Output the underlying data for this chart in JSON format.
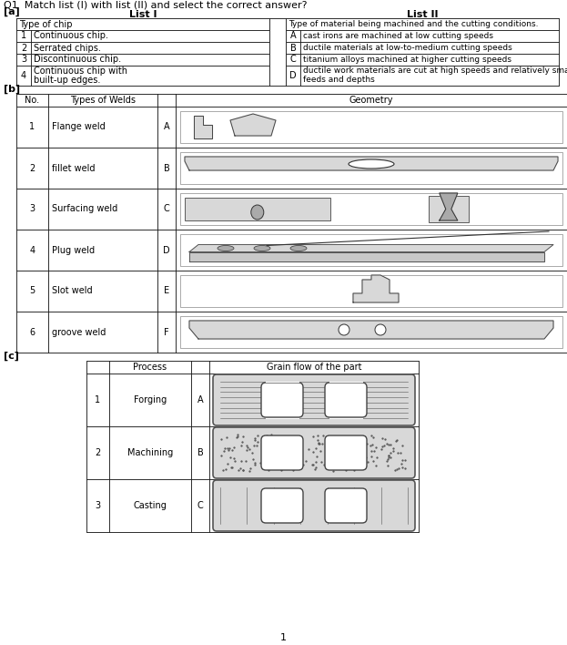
{
  "title": "Q1  Match list (I) with list (II) and select the correct answer?",
  "section_a_label": "[a]",
  "section_b_label": "[b]",
  "section_c_label": "[c]",
  "list1_header": "List I",
  "list2_header": "List II",
  "list1_col1_header": "Type of chip",
  "list2_col1_header": "Type of material being machined and the cutting conditions.",
  "list1_rows": [
    [
      "1",
      "Continuous chip."
    ],
    [
      "2",
      "Serrated chips."
    ],
    [
      "3",
      "Discontinuous chip."
    ],
    [
      "4",
      "Continuous chip with\nbuilt-up edges."
    ]
  ],
  "list2_rows": [
    [
      "A",
      "cast irons are machined at low cutting speeds"
    ],
    [
      "B",
      "ductile materials at low-to-medium cutting speeds"
    ],
    [
      "C",
      "titanium alloys machined at higher cutting speeds"
    ],
    [
      "D",
      "ductile work materials are cut at high speeds and relatively small\nfeeds and depths"
    ]
  ],
  "weld_rows": [
    [
      "1",
      "Flange weld",
      "A"
    ],
    [
      "2",
      "fillet weld",
      "B"
    ],
    [
      "3",
      "Surfacing weld",
      "C"
    ],
    [
      "4",
      "Plug weld",
      "D"
    ],
    [
      "5",
      "Slot weld",
      "E"
    ],
    [
      "6",
      "groove weld",
      "F"
    ]
  ],
  "process_rows": [
    [
      "1",
      "Forging",
      "A"
    ],
    [
      "2",
      "Machining",
      "B"
    ],
    [
      "3",
      "Casting",
      "C"
    ]
  ],
  "bg_color": "#ffffff",
  "gray_light": "#d8d8d8",
  "gray_mid": "#aaaaaa",
  "gray_dark": "#666666",
  "font_size": 7,
  "title_font_size": 8
}
